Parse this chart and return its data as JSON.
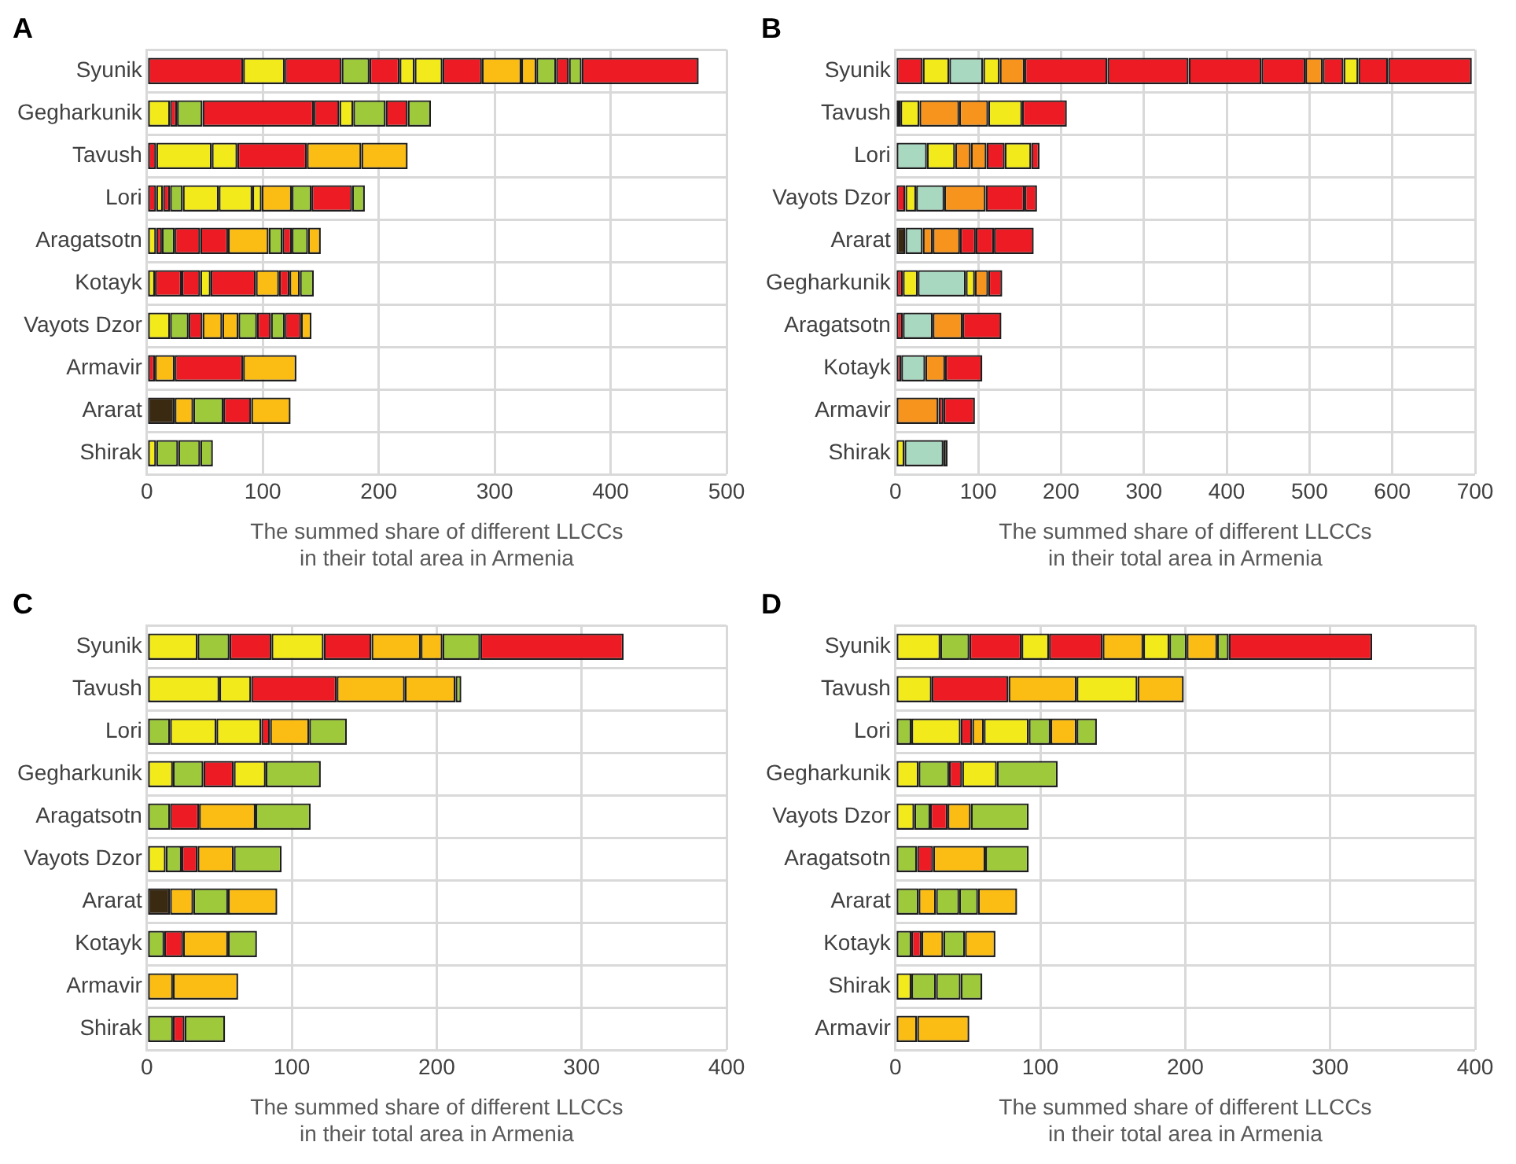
{
  "chart_data": [
    {
      "type": "bar",
      "title": "A",
      "orientation": "horizontal",
      "stacked": true,
      "grid": true,
      "xlabel": "The summed share of different LLCCs\nin their total area in Armenia",
      "xlim": [
        0,
        500
      ],
      "xticks": [
        0,
        100,
        200,
        300,
        400,
        500
      ],
      "categories": [
        "Syunik",
        "Gegharkunik",
        "Tavush",
        "Lori",
        "Aragatsotn",
        "Kotayk",
        "Vayots Dzor",
        "Armavir",
        "Ararat",
        "Shirak"
      ],
      "series": [
        {
          "values": [
            83,
            20,
            8,
            8,
            8,
            7,
            20,
            7,
            24,
            8
          ],
          "colors": [
            "#ed1c24",
            "#f2ea1a",
            "#ed1c24",
            "#ed1c24",
            "#f2ea1a",
            "#f2ea1a",
            "#f2ea1a",
            "#ed1c24",
            "#3b2a12",
            "#f2ea1a"
          ]
        },
        {
          "values": [
            36,
            6,
            48,
            6,
            5,
            23,
            16,
            17,
            16,
            19
          ],
          "colors": [
            "#f2ea1a",
            "#ed1c24",
            "#f2ea1a",
            "#f2ea1a",
            "#ed1c24",
            "#ed1c24",
            "#9dc93b",
            "#fbbd14",
            "#fbbd14",
            "#9dc93b"
          ]
        },
        {
          "values": [
            49,
            22,
            22,
            6,
            11,
            16,
            12,
            59,
            26,
            19
          ],
          "colors": [
            "#ed1c24",
            "#9dc93b",
            "#f2ea1a",
            "#ed1c24",
            "#9dc93b",
            "#ed1c24",
            "#ed1c24",
            "#ed1c24",
            "#9dc93b",
            "#9dc93b"
          ]
        },
        {
          "values": [
            24,
            96,
            60,
            11,
            22,
            9,
            17,
            46,
            24,
            11
          ],
          "colors": [
            "#9dc93b",
            "#ed1c24",
            "#ed1c24",
            "#9dc93b",
            "#ed1c24",
            "#f2ea1a",
            "#fbbd14",
            "#fbbd14",
            "#ed1c24",
            "#9dc93b"
          ]
        },
        {
          "values": [
            26,
            22,
            47,
            31,
            24,
            39,
            14,
            null,
            34,
            null
          ],
          "colors": [
            "#ed1c24",
            "#ed1c24",
            "#fbbd14",
            "#f2ea1a",
            "#ed1c24",
            "#ed1c24",
            "#fbbd14",
            null,
            "#fbbd14",
            null
          ]
        },
        {
          "values": [
            13,
            12,
            40,
            29,
            35,
            20,
            16,
            null,
            null,
            null
          ],
          "colors": [
            "#f2ea1a",
            "#f2ea1a",
            "#fbbd14",
            "#f2ea1a",
            "#fbbd14",
            "#fbbd14",
            "#9dc93b",
            null,
            null,
            null
          ]
        },
        {
          "values": [
            24,
            28,
            null,
            8,
            12,
            9,
            12,
            null,
            null,
            null
          ],
          "colors": [
            "#f2ea1a",
            "#9dc93b",
            null,
            "#f2ea1a",
            "#9dc93b",
            "#ed1c24",
            "#ed1c24",
            null,
            null,
            null
          ]
        },
        {
          "values": [
            34,
            19,
            null,
            26,
            8,
            9,
            12,
            null,
            null,
            null
          ],
          "colors": [
            "#ed1c24",
            "#ed1c24",
            null,
            "#fbbd14",
            "#ed1c24",
            "#fbbd14",
            "#9dc93b",
            null,
            null,
            null
          ]
        },
        {
          "values": [
            34,
            20,
            null,
            17,
            14,
            12,
            14,
            null,
            null,
            null
          ],
          "colors": [
            "#fbbd14",
            "#9dc93b",
            null,
            "#9dc93b",
            "#9dc93b",
            "#9dc93b",
            "#ed1c24",
            null,
            null,
            null
          ]
        },
        {
          "values": [
            13,
            null,
            null,
            35,
            11,
            null,
            9,
            null,
            null,
            null
          ],
          "colors": [
            "#fbbd14",
            null,
            null,
            "#ed1c24",
            "#fbbd14",
            null,
            "#fbbd14",
            null,
            null,
            null
          ]
        },
        {
          "values": [
            17,
            null,
            null,
            11,
            null,
            null,
            null,
            null,
            null,
            null
          ],
          "colors": [
            "#9dc93b",
            null,
            null,
            "#9dc93b",
            null,
            null,
            null,
            null,
            null,
            null
          ]
        },
        {
          "values": [
            11,
            null,
            null,
            null,
            null,
            null,
            null,
            null,
            null,
            null
          ],
          "colors": [
            "#ed1c24",
            null,
            null,
            null,
            null,
            null,
            null,
            null,
            null,
            null
          ]
        },
        {
          "values": [
            11,
            null,
            null,
            null,
            null,
            null,
            null,
            null,
            null,
            null
          ],
          "colors": [
            "#9dc93b",
            null,
            null,
            null,
            null,
            null,
            null,
            null,
            null,
            null
          ]
        },
        {
          "values": [
            101,
            null,
            null,
            null,
            null,
            null,
            null,
            null,
            null,
            null
          ],
          "colors": [
            "#ed1c24",
            null,
            null,
            null,
            null,
            null,
            null,
            null,
            null,
            null
          ]
        }
      ]
    },
    {
      "type": "bar",
      "title": "B",
      "orientation": "horizontal",
      "stacked": true,
      "grid": true,
      "xlabel": "The summed share of different LLCCs\nin their total area in Armenia",
      "xlim": [
        0,
        700
      ],
      "xticks": [
        0,
        100,
        200,
        300,
        400,
        500,
        600,
        700
      ],
      "categories": [
        "Syunik",
        "Tavush",
        "Lori",
        "Vayots Dzor",
        "Ararat",
        "Gegharkunik",
        "Aragatsotn",
        "Kotayk",
        "Armavir",
        "Shirak"
      ],
      "series": [
        {
          "values": [
            33,
            6,
            38,
            12,
            12,
            9,
            9,
            7,
            52,
            11
          ],
          "colors": [
            "#ed1c24",
            "#3b2a12",
            "#a8d8c0",
            "#ed1c24",
            "#3b2a12",
            "#ed1c24",
            "#ed1c24",
            "#ed1c24",
            "#f7941d",
            "#f2ea1a"
          ]
        },
        {
          "values": [
            32,
            23,
            34,
            13,
            21,
            18,
            36,
            29,
            6,
            47
          ],
          "colors": [
            "#f2ea1a",
            "#f2ea1a",
            "#f2ea1a",
            "#f2ea1a",
            "#a8d8c0",
            "#f2ea1a",
            "#a8d8c0",
            "#a8d8c0",
            "#ed1c24",
            "#a8d8c0"
          ]
        },
        {
          "values": [
            41,
            48,
            19,
            34,
            12,
            58,
            36,
            24,
            38,
            5
          ],
          "colors": [
            "#a8d8c0",
            "#f7941d",
            "#f7941d",
            "#a8d8c0",
            "#f7941d",
            "#a8d8c0",
            "#f7941d",
            "#f7941d",
            "#ed1c24",
            "#3b2a12"
          ]
        },
        {
          "values": [
            20,
            35,
            19,
            50,
            33,
            11,
            47,
            45,
            null,
            null
          ],
          "colors": [
            "#f2ea1a",
            "#f7941d",
            "#f7941d",
            "#f7941d",
            "#f7941d",
            "#f2ea1a",
            "#ed1c24",
            "#ed1c24",
            null,
            null
          ]
        },
        {
          "values": [
            30,
            41,
            22,
            47,
            19,
            16,
            null,
            null,
            null,
            null
          ],
          "colors": [
            "#f7941d",
            "#f2ea1a",
            "#ed1c24",
            "#ed1c24",
            "#ed1c24",
            "#f7941d",
            null,
            null,
            null,
            null
          ]
        },
        {
          "values": [
            100,
            54,
            32,
            15,
            22,
            17,
            null,
            null,
            null,
            null
          ],
          "colors": [
            "#ed1c24",
            "#ed1c24",
            "#f2ea1a",
            "#ed1c24",
            "#ed1c24",
            "#ed1c24",
            null,
            null,
            null,
            null
          ]
        },
        {
          "values": [
            98,
            null,
            10,
            null,
            48,
            null,
            null,
            null,
            null,
            null
          ],
          "colors": [
            "#ed1c24",
            null,
            "#ed1c24",
            null,
            "#ed1c24",
            null,
            null,
            null,
            null,
            null
          ]
        },
        {
          "values": [
            88,
            null,
            null,
            null,
            null,
            null,
            null,
            null,
            null,
            null
          ],
          "colors": [
            "#ed1c24",
            null,
            null,
            null,
            null,
            null,
            null,
            null,
            null,
            null
          ]
        },
        {
          "values": [
            53,
            null,
            null,
            null,
            null,
            null,
            null,
            null,
            null,
            null
          ],
          "colors": [
            "#ed1c24",
            null,
            null,
            null,
            null,
            null,
            null,
            null,
            null,
            null
          ]
        },
        {
          "values": [
            21,
            null,
            null,
            null,
            null,
            null,
            null,
            null,
            null,
            null
          ],
          "colors": [
            "#f7941d",
            null,
            null,
            null,
            null,
            null,
            null,
            null,
            null,
            null
          ]
        },
        {
          "values": [
            25,
            null,
            null,
            null,
            null,
            null,
            null,
            null,
            null,
            null
          ],
          "colors": [
            "#ed1c24",
            null,
            null,
            null,
            null,
            null,
            null,
            null,
            null,
            null
          ]
        },
        {
          "values": [
            18,
            null,
            null,
            null,
            null,
            null,
            null,
            null,
            null,
            null
          ],
          "colors": [
            "#f2ea1a",
            null,
            null,
            null,
            null,
            null,
            null,
            null,
            null,
            null
          ]
        },
        {
          "values": [
            36,
            null,
            null,
            null,
            null,
            null,
            null,
            null,
            null,
            null
          ],
          "colors": [
            "#ed1c24",
            null,
            null,
            null,
            null,
            null,
            null,
            null,
            null,
            null
          ]
        },
        {
          "values": [
            101,
            null,
            null,
            null,
            null,
            null,
            null,
            null,
            null,
            null
          ],
          "colors": [
            "#ed1c24",
            null,
            null,
            null,
            null,
            null,
            null,
            null,
            null,
            null
          ]
        }
      ]
    },
    {
      "type": "bar",
      "title": "C",
      "orientation": "horizontal",
      "stacked": true,
      "grid": true,
      "xlabel": "The summed share of different LLCCs\nin their total area in Armenia",
      "xlim": [
        0,
        400
      ],
      "xticks": [
        0,
        100,
        200,
        300,
        400
      ],
      "categories": [
        "Syunik",
        "Tavush",
        "Lori",
        "Gegharkunik",
        "Aragatsotn",
        "Vayots Dzor",
        "Ararat",
        "Kotayk",
        "Armavir",
        "Shirak"
      ],
      "series": [
        {
          "values": [
            35,
            50,
            16,
            18,
            16,
            13,
            16,
            12,
            18,
            18
          ],
          "colors": [
            "#f2ea1a",
            "#f2ea1a",
            "#9dc93b",
            "#f2ea1a",
            "#9dc93b",
            "#f2ea1a",
            "#3b2a12",
            "#9dc93b",
            "#fbbd14",
            "#9dc93b"
          ]
        },
        {
          "values": [
            22,
            22,
            32,
            21,
            20,
            11,
            16,
            13,
            45,
            8
          ],
          "colors": [
            "#9dc93b",
            "#f2ea1a",
            "#f2ea1a",
            "#9dc93b",
            "#ed1c24",
            "#9dc93b",
            "#fbbd14",
            "#ed1c24",
            "#fbbd14",
            "#ed1c24"
          ]
        },
        {
          "values": [
            29,
            59,
            31,
            21,
            39,
            11,
            24,
            31,
            null,
            28
          ],
          "colors": [
            "#ed1c24",
            "#ed1c24",
            "#f2ea1a",
            "#ed1c24",
            "#fbbd14",
            "#ed1c24",
            "#9dc93b",
            "#fbbd14",
            null,
            "#9dc93b"
          ]
        },
        {
          "values": [
            36,
            47,
            6,
            22,
            38,
            25,
            34,
            20,
            null,
            null
          ],
          "colors": [
            "#f2ea1a",
            "#fbbd14",
            "#ed1c24",
            "#f2ea1a",
            "#9dc93b",
            "#fbbd14",
            "#fbbd14",
            "#9dc93b",
            null,
            null
          ]
        },
        {
          "values": [
            33,
            35,
            27,
            38,
            null,
            33,
            null,
            null,
            null,
            null
          ],
          "colors": [
            "#ed1c24",
            "#fbbd14",
            "#fbbd14",
            "#9dc93b",
            null,
            "#9dc93b",
            null,
            null,
            null,
            null
          ]
        },
        {
          "values": [
            34,
            4,
            26,
            null,
            null,
            null,
            null,
            null,
            null,
            null
          ],
          "colors": [
            "#fbbd14",
            "#9dc93b",
            "#9dc93b",
            null,
            null,
            null,
            null,
            null,
            null,
            null
          ]
        },
        {
          "values": [
            15,
            null,
            null,
            null,
            null,
            null,
            null,
            null,
            null,
            null
          ],
          "colors": [
            "#fbbd14",
            null,
            null,
            null,
            null,
            null,
            null,
            null,
            null,
            null
          ]
        },
        {
          "values": [
            26,
            null,
            null,
            null,
            null,
            null,
            null,
            null,
            null,
            null
          ],
          "colors": [
            "#9dc93b",
            null,
            null,
            null,
            null,
            null,
            null,
            null,
            null,
            null
          ]
        },
        {
          "values": [
            99,
            null,
            null,
            null,
            null,
            null,
            null,
            null,
            null,
            null
          ],
          "colors": [
            "#ed1c24",
            null,
            null,
            null,
            null,
            null,
            null,
            null,
            null,
            null
          ]
        }
      ]
    },
    {
      "type": "bar",
      "title": "D",
      "orientation": "horizontal",
      "stacked": true,
      "grid": true,
      "xlabel": "The summed share of different LLCCs\nin their total area in Armenia",
      "xlim": [
        0,
        400
      ],
      "xticks": [
        0,
        100,
        200,
        300,
        400
      ],
      "categories": [
        "Syunik",
        "Tavush",
        "Lori",
        "Gegharkunik",
        "Vayots Dzor",
        "Aragatsotn",
        "Ararat",
        "Kotayk",
        "Shirak",
        "Armavir"
      ],
      "series": [
        {
          "values": [
            31,
            25,
            11,
            16,
            13,
            15,
            16,
            11,
            11,
            15
          ],
          "colors": [
            "#f2ea1a",
            "#f2ea1a",
            "#9dc93b",
            "#f2ea1a",
            "#f2ea1a",
            "#9dc93b",
            "#9dc93b",
            "#9dc93b",
            "#f2ea1a",
            "#fbbd14"
          ]
        },
        {
          "values": [
            20,
            53,
            34,
            21,
            11,
            11,
            12,
            7,
            17,
            36
          ],
          "colors": [
            "#9dc93b",
            "#ed1c24",
            "#f2ea1a",
            "#9dc93b",
            "#9dc93b",
            "#ed1c24",
            "#fbbd14",
            "#ed1c24",
            "#9dc93b",
            "#fbbd14"
          ]
        },
        {
          "values": [
            36,
            47,
            8,
            9,
            12,
            36,
            16,
            15,
            17,
            null
          ],
          "colors": [
            "#ed1c24",
            "#fbbd14",
            "#ed1c24",
            "#ed1c24",
            "#ed1c24",
            "#fbbd14",
            "#9dc93b",
            "#fbbd14",
            "#9dc93b",
            null
          ]
        },
        {
          "values": [
            19,
            42,
            8,
            24,
            16,
            30,
            13,
            15,
            15,
            null
          ],
          "colors": [
            "#f2ea1a",
            "#f2ea1a",
            "#fbbd14",
            "#f2ea1a",
            "#fbbd14",
            "#9dc93b",
            "#9dc93b",
            "#9dc93b",
            "#9dc93b",
            null
          ]
        },
        {
          "values": [
            37,
            32,
            31,
            42,
            40,
            null,
            27,
            21,
            null,
            null
          ],
          "colors": [
            "#ed1c24",
            "#fbbd14",
            "#f2ea1a",
            "#9dc93b",
            "#9dc93b",
            null,
            "#fbbd14",
            "#fbbd14",
            null,
            null
          ]
        },
        {
          "values": [
            28,
            null,
            15,
            null,
            null,
            null,
            null,
            null,
            null,
            null
          ],
          "colors": [
            "#fbbd14",
            null,
            "#9dc93b",
            null,
            null,
            null,
            null,
            null,
            null,
            null
          ]
        },
        {
          "values": [
            18,
            null,
            18,
            null,
            null,
            null,
            null,
            null,
            null,
            null
          ],
          "colors": [
            "#f2ea1a",
            null,
            "#fbbd14",
            null,
            null,
            null,
            null,
            null,
            null,
            null
          ]
        },
        {
          "values": [
            12,
            null,
            14,
            null,
            null,
            null,
            null,
            null,
            null,
            null
          ],
          "colors": [
            "#9dc93b",
            null,
            "#9dc93b",
            null,
            null,
            null,
            null,
            null,
            null,
            null
          ]
        },
        {
          "values": [
            21,
            null,
            null,
            null,
            null,
            null,
            null,
            null,
            null,
            null
          ],
          "colors": [
            "#fbbd14",
            null,
            null,
            null,
            null,
            null,
            null,
            null,
            null,
            null
          ]
        },
        {
          "values": [
            8,
            null,
            null,
            null,
            null,
            null,
            null,
            null,
            null,
            null
          ],
          "colors": [
            "#9dc93b",
            null,
            null,
            null,
            null,
            null,
            null,
            null,
            null,
            null
          ]
        },
        {
          "values": [
            99,
            null,
            null,
            null,
            null,
            null,
            null,
            null,
            null,
            null
          ],
          "colors": [
            "#ed1c24",
            null,
            null,
            null,
            null,
            null,
            null,
            null,
            null,
            null
          ]
        }
      ]
    }
  ]
}
